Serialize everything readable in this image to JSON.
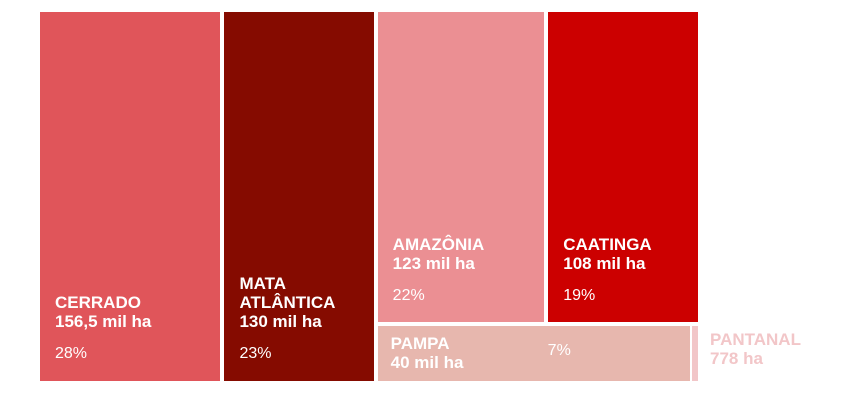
{
  "chart_data": {
    "type": "treemap",
    "categories": [
      "CERRADO",
      "MATA ATLÂNTICA",
      "AMAZÔNIA",
      "CAATINGA",
      "PAMPA",
      "PANTANAL"
    ],
    "values": [
      156500,
      130000,
      123000,
      108000,
      40000,
      778
    ],
    "value_labels": [
      "156,5 mil ha",
      "130 mil ha",
      "123 mil ha",
      "108 mil ha",
      "40 mil ha",
      "778 ha"
    ],
    "shares": [
      28,
      23,
      22,
      19,
      7,
      null
    ],
    "share_labels": [
      "28%",
      "23%",
      "22%",
      "19%",
      "7%",
      null
    ],
    "colors": [
      "#e0555a",
      "#850b00",
      "#eb8f93",
      "#cc0000",
      "#e7b7ae",
      "#f2c6c8"
    ]
  }
}
